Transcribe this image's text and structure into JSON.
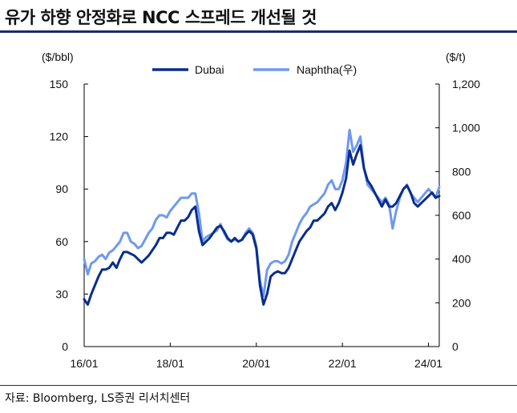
{
  "title": "유가 하향 안정화로 NCC 스프레드 개선될 것",
  "source": "자료: Bloomberg, LS증권 리서치센터",
  "colors": {
    "dubai": "#0a2d8c",
    "naphtha": "#6e99f0",
    "rule": "#1b2a6b",
    "axis": "#000000"
  },
  "chart_data": {
    "type": "line",
    "y_left_label": "($/bbl)",
    "y_right_label": "($/t)",
    "ylim_left": [
      0,
      150
    ],
    "ylim_right": [
      0,
      1200
    ],
    "x_ticks": [
      "16/01",
      "18/01",
      "20/01",
      "22/01",
      "24/01"
    ],
    "y_left_ticks": [
      "0",
      "30",
      "60",
      "90",
      "120",
      "150"
    ],
    "y_right_ticks": [
      "0",
      "200",
      "400",
      "600",
      "800",
      "1,000",
      "1,200"
    ],
    "x_start": "2016-01",
    "grid": false,
    "legend_position": "top-center",
    "series": [
      {
        "name": "Dubai",
        "axis": "left",
        "values": [
          27,
          24,
          30,
          35,
          40,
          44,
          44,
          45,
          48,
          45,
          50,
          54,
          54,
          53,
          52,
          50,
          48,
          50,
          52,
          55,
          58,
          62,
          62,
          65,
          65,
          64,
          68,
          72,
          72,
          74,
          78,
          80,
          66,
          58,
          60,
          62,
          65,
          68,
          69,
          66,
          62,
          60,
          62,
          60,
          61,
          64,
          66,
          64,
          56,
          35,
          24,
          30,
          40,
          42,
          43,
          42,
          42,
          45,
          50,
          55,
          60,
          63,
          66,
          68,
          72,
          72,
          74,
          76,
          80,
          82,
          78,
          82,
          88,
          96,
          112,
          104,
          110,
          115,
          102,
          95,
          92,
          88,
          84,
          80,
          84,
          80,
          80,
          82,
          86,
          90,
          92,
          88,
          82,
          80,
          82,
          84,
          86,
          88,
          85,
          86
        ]
      },
      {
        "name": "Naphtha(우)",
        "axis": "right",
        "values": [
          400,
          330,
          380,
          390,
          410,
          420,
          400,
          430,
          440,
          460,
          480,
          520,
          520,
          480,
          470,
          450,
          460,
          490,
          520,
          540,
          580,
          600,
          600,
          590,
          620,
          640,
          660,
          680,
          680,
          680,
          700,
          700,
          610,
          480,
          500,
          510,
          520,
          530,
          560,
          520,
          490,
          480,
          490,
          480,
          490,
          520,
          540,
          520,
          460,
          300,
          230,
          350,
          380,
          390,
          390,
          380,
          390,
          420,
          480,
          520,
          560,
          590,
          610,
          640,
          650,
          660,
          680,
          700,
          740,
          760,
          720,
          720,
          760,
          840,
          990,
          890,
          920,
          960,
          820,
          740,
          720,
          700,
          680,
          660,
          680,
          650,
          540,
          620,
          680,
          720,
          740,
          700,
          680,
          660,
          680,
          700,
          720,
          700,
          680,
          730
        ]
      }
    ]
  }
}
